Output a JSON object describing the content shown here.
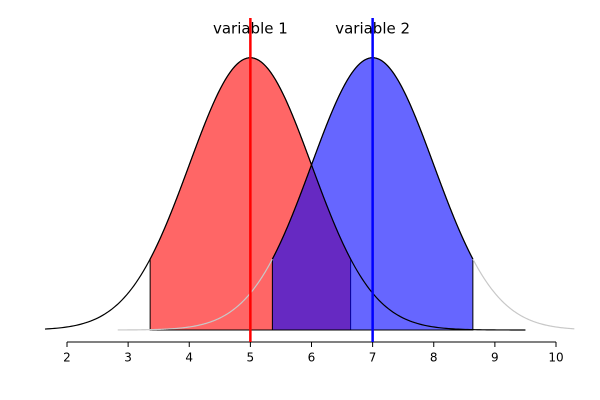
{
  "chart_data": {
    "type": "density",
    "xlim": [
      2,
      10
    ],
    "xticks": [
      2,
      3,
      4,
      5,
      6,
      7,
      8,
      9,
      10
    ],
    "ylim": [
      0,
      0.4
    ],
    "series": [
      {
        "name": "variable 1",
        "mean": 5,
        "sd": 1,
        "range": [
          1.64,
          9.5
        ],
        "interval": [
          3.36,
          6.64
        ],
        "color": "#ff0000",
        "curve_color": "#000000"
      },
      {
        "name": "variable 2",
        "mean": 7,
        "sd": 1,
        "range": [
          2.83,
          10.3
        ],
        "interval": [
          5.36,
          8.64
        ],
        "color": "#0000ff",
        "curve_color": "#000000",
        "tail_color": "#c8c8c8"
      }
    ]
  }
}
